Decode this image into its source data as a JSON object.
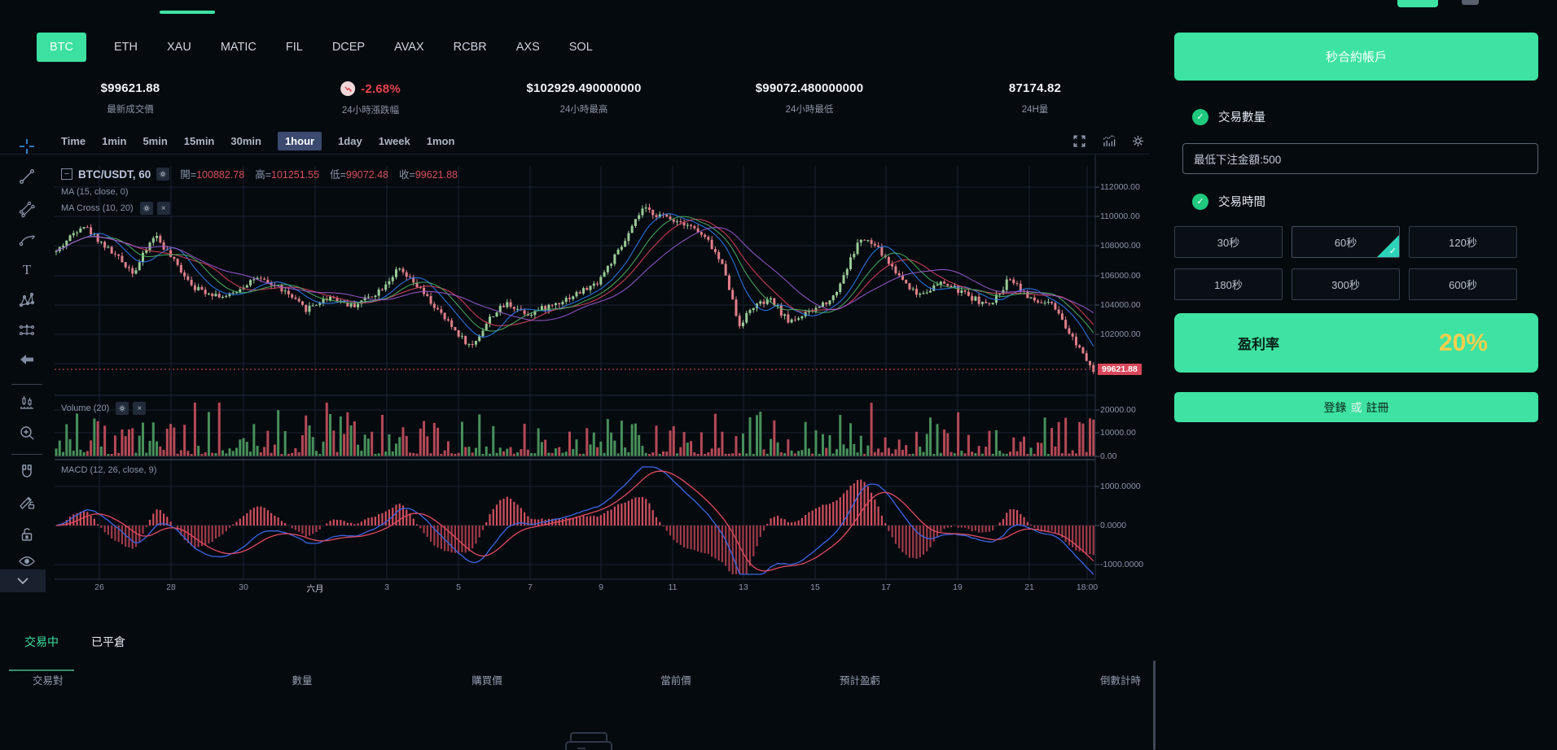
{
  "icons": {
    "check": "✓",
    "close": "×",
    "minus": "−"
  },
  "coin_tabs": {
    "items": [
      "BTC",
      "ETH",
      "XAU",
      "MATIC",
      "FIL",
      "DCEP",
      "AVAX",
      "RCBR",
      "AXS",
      "SOL"
    ],
    "active_index": 0
  },
  "stats": [
    {
      "value": "$99621.88",
      "label": "最新成交價"
    },
    {
      "value": "-2.68%",
      "label": "24小時漲跌幅"
    },
    {
      "value": "$102929.490000000",
      "label": "24小時最高"
    },
    {
      "value": "$99072.480000000",
      "label": "24小時最低"
    },
    {
      "value": "87174.82",
      "label": "24H量"
    }
  ],
  "intervals": {
    "items": [
      "Time",
      "1min",
      "5min",
      "15min",
      "30min",
      "1hour",
      "1day",
      "1week",
      "1mon"
    ],
    "active_index": 5
  },
  "chart": {
    "symbol": "BTC/USDT, 60",
    "legend_pairs": [
      {
        "k": "開=",
        "v": "100882.78"
      },
      {
        "k": "高=",
        "v": "101251.55"
      },
      {
        "k": "低=",
        "v": "99072.48"
      },
      {
        "k": "收=",
        "v": "99621.88"
      }
    ],
    "ma1": "MA (15, close, 0)",
    "ma2": "MA Cross (10, 20)",
    "volume_label": "Volume (20)",
    "macd_label": "MACD (12, 26, close, 9)",
    "price_tag": "99621.88",
    "price_ticks": [
      "112000.00",
      "110000.00",
      "108000.00",
      "106000.00",
      "104000.00",
      "102000.00"
    ],
    "volume_ticks": [
      "20000.00",
      "10000.00",
      "0.00"
    ],
    "macd_ticks": [
      "1000.0000",
      "0.0000",
      "-1000.0000"
    ],
    "x_ticks": [
      "26",
      "28",
      "30",
      "六月",
      "3",
      "5",
      "7",
      "9",
      "11",
      "13",
      "15",
      "17",
      "19",
      "21",
      "18:00"
    ]
  },
  "chart_data": {
    "type": "candlestick",
    "symbol": "BTC/USDT",
    "interval_minutes": 60,
    "ohlc": {
      "open": 100882.78,
      "high": 101251.55,
      "low": 99072.48,
      "close": 99621.88
    },
    "last_price": 99621.88,
    "change_24h_pct": -2.68,
    "high_24h": 102929.49,
    "low_24h": 99072.48,
    "volume_24h": 87174.82,
    "price_axis_ticks": [
      112000,
      110000,
      108000,
      106000,
      104000,
      102000
    ],
    "volume_axis_ticks": [
      20000,
      10000,
      0
    ],
    "macd_axis_ticks": [
      1000,
      0,
      -1000
    ],
    "num_candles": 300,
    "seed": 42,
    "anchors": [
      [
        0,
        107600
      ],
      [
        0.025,
        109500
      ],
      [
        0.05,
        107800
      ],
      [
        0.075,
        106200
      ],
      [
        0.095,
        108800
      ],
      [
        0.115,
        106800
      ],
      [
        0.135,
        105100
      ],
      [
        0.165,
        104500
      ],
      [
        0.19,
        105800
      ],
      [
        0.215,
        105200
      ],
      [
        0.24,
        103700
      ],
      [
        0.265,
        104600
      ],
      [
        0.285,
        103900
      ],
      [
        0.31,
        104900
      ],
      [
        0.33,
        106400
      ],
      [
        0.35,
        105100
      ],
      [
        0.375,
        103000
      ],
      [
        0.4,
        101100
      ],
      [
        0.42,
        103300
      ],
      [
        0.435,
        104100
      ],
      [
        0.455,
        103400
      ],
      [
        0.475,
        103900
      ],
      [
        0.5,
        104700
      ],
      [
        0.52,
        105400
      ],
      [
        0.545,
        107900
      ],
      [
        0.565,
        110500
      ],
      [
        0.585,
        110000
      ],
      [
        0.61,
        109500
      ],
      [
        0.63,
        108200
      ],
      [
        0.645,
        106300
      ],
      [
        0.658,
        102600
      ],
      [
        0.672,
        103900
      ],
      [
        0.69,
        104300
      ],
      [
        0.705,
        102900
      ],
      [
        0.725,
        103400
      ],
      [
        0.75,
        104600
      ],
      [
        0.775,
        108500
      ],
      [
        0.79,
        108000
      ],
      [
        0.81,
        106200
      ],
      [
        0.83,
        104700
      ],
      [
        0.855,
        105500
      ],
      [
        0.88,
        104600
      ],
      [
        0.9,
        103900
      ],
      [
        0.92,
        105900
      ],
      [
        0.94,
        104300
      ],
      [
        0.96,
        104000
      ],
      [
        0.975,
        102200
      ],
      [
        0.988,
        101000
      ],
      [
        1,
        99621.88
      ]
    ],
    "colors": {
      "up": "#9acb95",
      "down": "#e07f89",
      "vol_up": "#4f9f63",
      "vol_down": "#c9505e",
      "ma_fast": "#2e7bf0",
      "ma_slow": "#d8435f",
      "ma_mid": "#4caf63",
      "ma_extra": "#9b59d0",
      "macd_line": "#3c66e6",
      "macd_signal": "#e14b62",
      "hist_pos": "#cf4f5e",
      "hist_neg": "#a03a49",
      "grid": "#1a2231",
      "last_price_line": "#e0485a"
    }
  },
  "panel": {
    "account_button": "秒合約帳戶",
    "qty_label": "交易數量",
    "amount_value": "最低下注金額:500",
    "time_label": "交易時間",
    "durations": {
      "items": [
        "30秒",
        "60秒",
        "120秒",
        "180秒",
        "300秒",
        "600秒"
      ],
      "active_index": 1
    },
    "profit_label": "盈利率",
    "profit_value": "20%",
    "login": {
      "prefix": "登錄",
      "or": "或",
      "suffix": "註冊"
    }
  },
  "positions": {
    "tabs": {
      "items": [
        "交易中",
        "已平倉"
      ],
      "active_index": 0
    },
    "headers": [
      "交易對",
      "數量",
      "購買價",
      "當前價",
      "預計盈虧",
      "倒數計時"
    ]
  }
}
